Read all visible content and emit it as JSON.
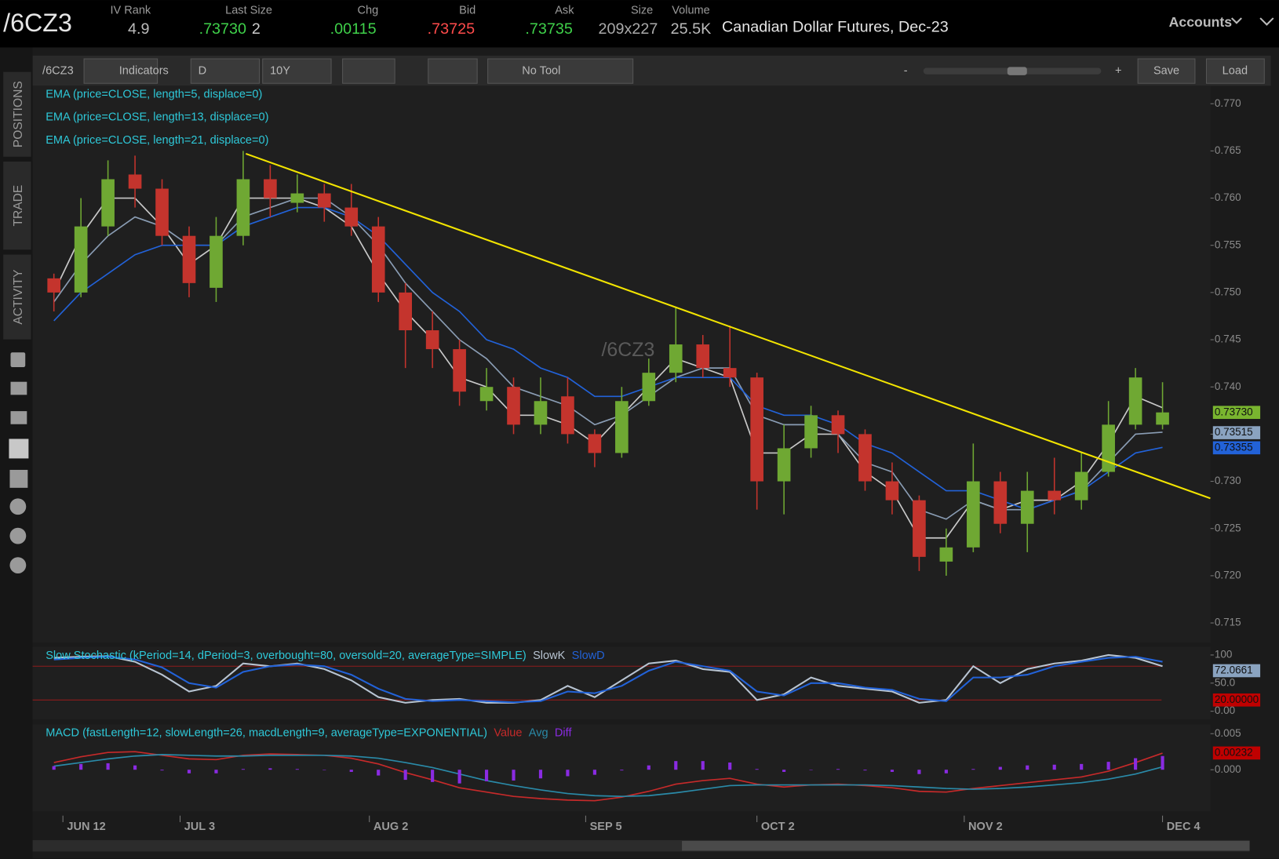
{
  "header": {
    "symbol": "/6CZ3",
    "fields": [
      {
        "label": "IV Rank",
        "value": "4.9"
      },
      {
        "label": "Last Size",
        "value": ".73730",
        "extra": "2"
      },
      {
        "label": "Chg",
        "value": ".00115"
      },
      {
        "label": "Bid",
        "value": ".73725"
      },
      {
        "label": "Ask",
        "value": ".73735"
      },
      {
        "label": "Size",
        "value": "209x227"
      },
      {
        "label": "Volume",
        "value": "25.5K"
      }
    ],
    "description": "Canadian Dollar Futures, Dec-23",
    "accounts": "Accounts"
  },
  "toolbar": {
    "symbol": "/6CZ3",
    "indicators": "Indicators",
    "aggregation": "D",
    "timeframe": "10Y",
    "tool": "No Tool",
    "zoom_out": "-",
    "zoom_in": "+",
    "save": "Save",
    "load": "Load"
  },
  "sidebar": {
    "tabs": [
      "POSITIONS",
      "TRADE",
      "ACTIVITY"
    ]
  },
  "chart_data": {
    "type": "candlestick",
    "title": "/6CZ3",
    "x": [
      1,
      4,
      7,
      10,
      13,
      16,
      19,
      22,
      25,
      28,
      31,
      34,
      37,
      40,
      43,
      46,
      49,
      52,
      55,
      58,
      61,
      64,
      67,
      70,
      73,
      76,
      79,
      82,
      85,
      88,
      91,
      94,
      97,
      100,
      103,
      106,
      109,
      112,
      115,
      118,
      121,
      124
    ],
    "open": [
      0.7515,
      0.75,
      0.757,
      0.7625,
      0.761,
      0.756,
      0.7505,
      0.756,
      0.762,
      0.7595,
      0.7605,
      0.759,
      0.757,
      0.75,
      0.746,
      0.744,
      0.7385,
      0.74,
      0.736,
      0.739,
      0.735,
      0.733,
      0.7385,
      0.7415,
      0.7445,
      0.742,
      0.741,
      0.73,
      0.7335,
      0.737,
      0.735,
      0.73,
      0.728,
      0.7215,
      0.723,
      0.73,
      0.7255,
      0.729,
      0.728,
      0.731,
      0.736,
      0.736
    ],
    "high": [
      0.752,
      0.76,
      0.764,
      0.7645,
      0.762,
      0.757,
      0.758,
      0.765,
      0.7635,
      0.7625,
      0.7615,
      0.7615,
      0.758,
      0.751,
      0.748,
      0.745,
      0.742,
      0.741,
      0.741,
      0.741,
      0.7355,
      0.74,
      0.743,
      0.7485,
      0.7455,
      0.7465,
      0.7415,
      0.736,
      0.738,
      0.7375,
      0.7355,
      0.732,
      0.7285,
      0.725,
      0.734,
      0.731,
      0.731,
      0.7325,
      0.733,
      0.7385,
      0.742,
      0.7405
    ],
    "low": [
      0.748,
      0.7495,
      0.756,
      0.759,
      0.755,
      0.7495,
      0.749,
      0.755,
      0.758,
      0.7585,
      0.7575,
      0.756,
      0.749,
      0.742,
      0.742,
      0.738,
      0.7375,
      0.735,
      0.735,
      0.734,
      0.7315,
      0.7325,
      0.738,
      0.7405,
      0.741,
      0.74,
      0.727,
      0.7265,
      0.7325,
      0.733,
      0.729,
      0.7265,
      0.7205,
      0.72,
      0.7225,
      0.7245,
      0.7225,
      0.7265,
      0.727,
      0.7305,
      0.7355,
      0.7355
    ],
    "close": [
      0.75,
      0.757,
      0.762,
      0.761,
      0.756,
      0.751,
      0.756,
      0.762,
      0.76,
      0.7605,
      0.759,
      0.757,
      0.75,
      0.746,
      0.744,
      0.7395,
      0.74,
      0.736,
      0.7385,
      0.735,
      0.733,
      0.7385,
      0.7415,
      0.7445,
      0.742,
      0.741,
      0.73,
      0.7335,
      0.737,
      0.735,
      0.73,
      0.728,
      0.722,
      0.723,
      0.73,
      0.7255,
      0.729,
      0.728,
      0.731,
      0.736,
      0.741,
      0.7373
    ],
    "up_color": "#6fa833",
    "down_color": "#c4342d",
    "overlays": [
      {
        "name": "EMA (price=CLOSE, length=5, displace=0)",
        "color": "#c9c9c9",
        "values": [
          0.75,
          0.756,
          0.76,
          0.76,
          0.757,
          0.753,
          0.755,
          0.76,
          0.76,
          0.76,
          0.759,
          0.757,
          0.752,
          0.748,
          0.745,
          0.741,
          0.74,
          0.737,
          0.737,
          0.736,
          0.734,
          0.737,
          0.74,
          0.743,
          0.742,
          0.741,
          0.733,
          0.733,
          0.735,
          0.735,
          0.731,
          0.729,
          0.724,
          0.724,
          0.728,
          0.727,
          0.728,
          0.728,
          0.73,
          0.734,
          0.739,
          0.7378
        ]
      },
      {
        "name": "EMA (price=CLOSE, length=13, displace=0)",
        "color": "#8a9db4",
        "values": [
          0.749,
          0.753,
          0.756,
          0.758,
          0.757,
          0.755,
          0.755,
          0.758,
          0.759,
          0.76,
          0.76,
          0.758,
          0.755,
          0.751,
          0.748,
          0.745,
          0.743,
          0.74,
          0.739,
          0.738,
          0.736,
          0.737,
          0.739,
          0.741,
          0.742,
          0.742,
          0.737,
          0.736,
          0.736,
          0.735,
          0.732,
          0.731,
          0.727,
          0.726,
          0.728,
          0.727,
          0.727,
          0.728,
          0.729,
          0.732,
          0.735,
          0.7352
        ]
      },
      {
        "name": "EMA (price=CLOSE, length=21, displace=0)",
        "color": "#2262d8",
        "values": [
          0.747,
          0.75,
          0.752,
          0.754,
          0.755,
          0.755,
          0.755,
          0.757,
          0.758,
          0.759,
          0.759,
          0.758,
          0.756,
          0.753,
          0.75,
          0.748,
          0.745,
          0.744,
          0.742,
          0.741,
          0.739,
          0.739,
          0.74,
          0.741,
          0.741,
          0.741,
          0.738,
          0.737,
          0.737,
          0.736,
          0.734,
          0.733,
          0.731,
          0.729,
          0.729,
          0.728,
          0.727,
          0.728,
          0.729,
          0.731,
          0.733,
          0.7336
        ]
      }
    ],
    "trendline": {
      "x": [
        22.3,
        129.3
      ],
      "values": [
        0.7647,
        0.7282
      ],
      "color": "#f2e400"
    },
    "price_labels": [
      {
        "value": 0.7373,
        "label": "0.73730",
        "color": "#79b52f"
      },
      {
        "value": 0.73515,
        "label": "0.73515",
        "color": "#8aa3c0"
      },
      {
        "value": 0.73355,
        "label": "0.73355",
        "color": "#2262d8"
      }
    ],
    "xlim": [
      -1.36,
      129.32
    ],
    "xticks": [
      {
        "value": 2,
        "label": "JUN 12"
      },
      {
        "value": 15,
        "label": "JUL 3"
      },
      {
        "value": 36,
        "label": "AUG 2"
      },
      {
        "value": 60,
        "label": "SEP 5"
      },
      {
        "value": 79,
        "label": "OCT 2"
      },
      {
        "value": 102,
        "label": "NOV 2"
      },
      {
        "value": 124,
        "label": "DEC 4"
      }
    ],
    "ylim": [
      0.7129,
      0.7719
    ],
    "yticks": [
      {
        "value": 0.77,
        "label": "0.770"
      },
      0.765,
      {
        "value": 0.76,
        "label": "0.760"
      },
      0.755,
      {
        "value": 0.75,
        "label": "0.750"
      },
      0.745,
      {
        "value": 0.74,
        "label": "0.740"
      },
      0.735,
      {
        "value": 0.73,
        "label": "0.730"
      },
      0.725,
      {
        "value": 0.72,
        "label": "0.720"
      },
      0.715
    ],
    "panes": [
      {
        "type": "line",
        "title": "Slow Stochastic (kPeriod=14, dPeriod=3, overbought=80, oversold=20, averageType=SIMPLE)",
        "ylim": [
          -14.5,
          114.5
        ],
        "yticks": [
          100,
          {
            "value": 50,
            "label": "50.0"
          },
          {
            "value": 0,
            "label": "0.00"
          }
        ],
        "levels": [
          80,
          20
        ],
        "level_color": "#8f1c1c",
        "series": [
          {
            "name": "SlowK",
            "color": "#b8c4d2",
            "values": [
              95,
              97,
              98,
              88,
              65,
              35,
              45,
              85,
              80,
              85,
              75,
              55,
              25,
              15,
              20,
              22,
              15,
              15,
              20,
              45,
              25,
              55,
              85,
              90,
              75,
              70,
              20,
              30,
              60,
              45,
              40,
              35,
              15,
              20,
              80,
              50,
              75,
              85,
              90,
              100,
              95,
              80
            ]
          },
          {
            "name": "SlowD",
            "color": "#2262d8",
            "values": [
              92,
              95,
              97,
              92,
              78,
              50,
              42,
              70,
              80,
              83,
              80,
              65,
              40,
              22,
              18,
              20,
              18,
              16,
              18,
              35,
              32,
              45,
              72,
              88,
              80,
              72,
              35,
              28,
              50,
              50,
              42,
              38,
              22,
              18,
              60,
              60,
              65,
              80,
              88,
              95,
              97,
              88
            ]
          }
        ],
        "marker_labels": [
          {
            "value": 72.0661,
            "label": "72.0661",
            "color": "#8aa3c0"
          },
          {
            "value": 20,
            "label": "20.00000",
            "color": "#c00000"
          }
        ]
      },
      {
        "type": "macd",
        "title": "MACD (fastLength=12, slowLength=26, macdLength=9, averageType=EXPONENTIAL)",
        "ylim": [
          -0.0058,
          0.0063
        ],
        "yticks": [
          {
            "value": 0.005,
            "label": "0.005"
          },
          {
            "value": 0,
            "label": "0.000"
          }
        ],
        "series": [
          {
            "name": "Value",
            "color": "#c62a2a",
            "values": [
              0.001,
              0.0018,
              0.0024,
              0.0025,
              0.002,
              0.0015,
              0.0014,
              0.002,
              0.0022,
              0.0021,
              0.002,
              0.0016,
              0.0008,
              -0.0004,
              -0.0014,
              -0.0025,
              -0.0031,
              -0.0037,
              -0.004,
              -0.0042,
              -0.0043,
              -0.0038,
              -0.003,
              -0.002,
              -0.0015,
              -0.0012,
              -0.002,
              -0.0024,
              -0.0021,
              -0.002,
              -0.0022,
              -0.0025,
              -0.003,
              -0.0031,
              -0.0026,
              -0.0022,
              -0.0018,
              -0.0014,
              -0.001,
              -0.0002,
              0.001,
              0.0023
            ]
          },
          {
            "name": "Avg",
            "color": "#2a8aa8",
            "values": [
              0.0005,
              0.001,
              0.0015,
              0.0019,
              0.0021,
              0.002,
              0.0019,
              0.0019,
              0.002,
              0.002,
              0.002,
              0.0019,
              0.0016,
              0.001,
              0.0003,
              -0.0006,
              -0.0015,
              -0.0022,
              -0.0028,
              -0.0033,
              -0.0036,
              -0.0037,
              -0.0036,
              -0.0032,
              -0.0027,
              -0.0022,
              -0.0021,
              -0.0021,
              -0.0021,
              -0.0021,
              -0.0021,
              -0.0022,
              -0.0024,
              -0.0026,
              -0.0027,
              -0.0026,
              -0.0024,
              -0.0021,
              -0.0018,
              -0.0013,
              -0.0006,
              0.0004
            ]
          },
          {
            "name": "Diff",
            "color": "#8a2be2",
            "bars": true,
            "values": [
              0.0005,
              0.0008,
              0.0009,
              0.0006,
              -0.0001,
              -0.0005,
              -0.0005,
              0.0001,
              0.0002,
              0.0001,
              0,
              -0.0003,
              -0.0008,
              -0.0014,
              -0.0017,
              -0.0019,
              -0.0016,
              -0.0015,
              -0.0012,
              -0.0009,
              -0.0007,
              -0.0001,
              0.0006,
              0.0012,
              0.0012,
              0.001,
              0.0001,
              -0.0003,
              0,
              0.0001,
              -0.0001,
              -0.0003,
              -0.0006,
              -0.0005,
              0.0001,
              0.0004,
              0.0006,
              0.0007,
              0.0008,
              0.0011,
              0.0016,
              0.0019
            ]
          }
        ],
        "marker_labels": [
          {
            "value": 0.00232,
            "label": "0.00232",
            "color": "#c00000"
          }
        ]
      }
    ]
  }
}
